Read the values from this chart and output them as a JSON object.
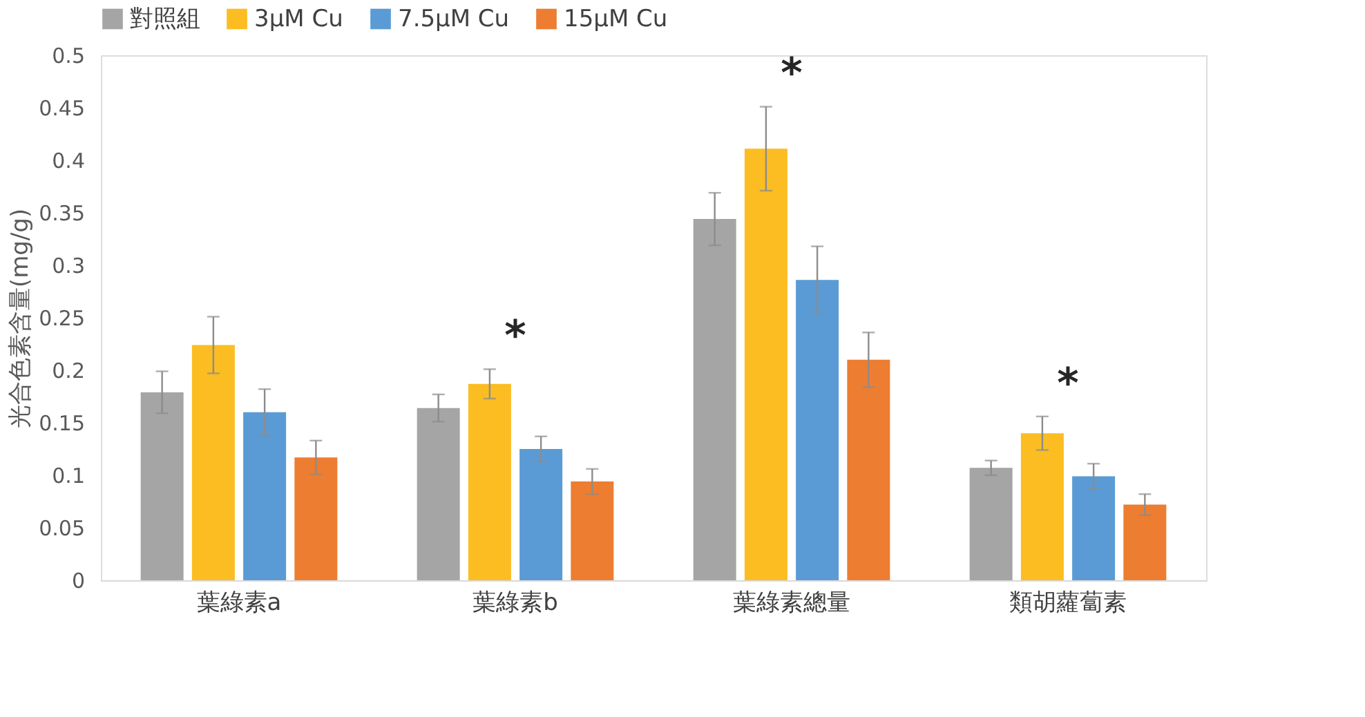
{
  "chart_data": {
    "type": "bar",
    "categories": [
      "葉綠素a",
      "葉綠素b",
      "葉綠素總量",
      "類胡蘿蔔素"
    ],
    "ylabel": "光合色素含量(mg/g)",
    "ylim": [
      0,
      0.5
    ],
    "yticks": [
      0,
      0.05,
      0.1,
      0.15,
      0.2,
      0.25,
      0.3,
      0.35,
      0.4,
      0.45,
      0.5
    ],
    "grid": false,
    "legend": "top",
    "series": [
      {
        "name": "對照組",
        "color": "#a5a5a5",
        "values": [
          0.179,
          0.164,
          0.344,
          0.107
        ],
        "errors": [
          0.02,
          0.013,
          0.025,
          0.007
        ]
      },
      {
        "name": "3μM Cu",
        "color": "#fbbd22",
        "values": [
          0.224,
          0.187,
          0.411,
          0.14
        ],
        "errors": [
          0.027,
          0.014,
          0.04,
          0.016
        ]
      },
      {
        "name": "7.5μM Cu",
        "color": "#5b9bd5",
        "values": [
          0.16,
          0.125,
          0.286,
          0.099
        ],
        "errors": [
          0.022,
          0.012,
          0.032,
          0.012
        ]
      },
      {
        "name": "15μM Cu",
        "color": "#ed7d31",
        "values": [
          0.117,
          0.094,
          0.21,
          0.072
        ],
        "errors": [
          0.016,
          0.012,
          0.026,
          0.01
        ]
      }
    ],
    "annotations": [
      "*",
      "*",
      "*"
    ]
  }
}
